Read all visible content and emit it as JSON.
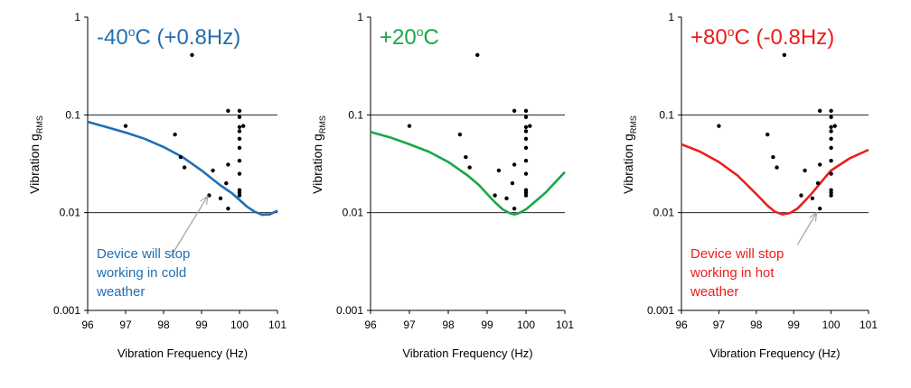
{
  "chart_data": [
    {
      "type": "scatter",
      "title": "-40",
      "title_sup": "o",
      "title_rest": "C (+0.8Hz)",
      "title_color": "#1f6fb4",
      "xlabel": "Vibration Frequency (Hz)",
      "ylabel": "Vibration g",
      "ylabel_sub": "RMS",
      "xlim": [
        96,
        101
      ],
      "ylim": [
        0.001,
        1
      ],
      "yscale": "log",
      "x_ticks": [
        "96",
        "97",
        "98",
        "99",
        "100",
        "101"
      ],
      "y_ticks": [
        "0.001",
        "0.01",
        "0.1",
        "1"
      ],
      "grid": "major horizontal",
      "points": [
        [
          97.0,
          0.077
        ],
        [
          98.3,
          0.063
        ],
        [
          98.45,
          0.037
        ],
        [
          98.55,
          0.029
        ],
        [
          98.75,
          0.41
        ],
        [
          99.2,
          0.015
        ],
        [
          99.3,
          0.027
        ],
        [
          99.5,
          0.014
        ],
        [
          99.65,
          0.02
        ],
        [
          99.7,
          0.011
        ],
        [
          99.7,
          0.031
        ],
        [
          99.7,
          0.11
        ],
        [
          100,
          0.11
        ],
        [
          100,
          0.095
        ],
        [
          100,
          0.075
        ],
        [
          100,
          0.068
        ],
        [
          100,
          0.057
        ],
        [
          100,
          0.046
        ],
        [
          100,
          0.034
        ],
        [
          100,
          0.025
        ],
        [
          100,
          0.017
        ],
        [
          100,
          0.016
        ],
        [
          100,
          0.015
        ],
        [
          100.1,
          0.077
        ]
      ],
      "curve": {
        "color": "#1f6fb4",
        "x": [
          96,
          96.5,
          97,
          97.5,
          98,
          98.5,
          99,
          99.5,
          99.8,
          100,
          100.2,
          100.4,
          100.6,
          100.8,
          101
        ],
        "y": [
          0.085,
          0.075,
          0.066,
          0.057,
          0.047,
          0.037,
          0.027,
          0.019,
          0.0158,
          0.0135,
          0.0115,
          0.0102,
          0.0095,
          0.0096,
          0.0105
        ]
      },
      "annotation": {
        "lines": [
          "Device will stop",
          "working in cold",
          "weather"
        ],
        "color": "#1f6fb4",
        "arrow_to": [
          99.15,
          0.0145
        ],
        "arrow_from": [
          98.2,
          0.0036
        ]
      }
    },
    {
      "type": "scatter",
      "title": "+20",
      "title_sup": "o",
      "title_rest": "C",
      "title_color": "#1aa64a",
      "xlabel": "Vibration Frequency (Hz)",
      "ylabel": "Vibration g",
      "ylabel_sub": "RMS",
      "xlim": [
        96,
        101
      ],
      "ylim": [
        0.001,
        1
      ],
      "yscale": "log",
      "x_ticks": [
        "96",
        "97",
        "98",
        "99",
        "100",
        "101"
      ],
      "y_ticks": [
        "0.001",
        "0.01",
        "0.1",
        "1"
      ],
      "grid": "major horizontal",
      "points": [
        [
          97.0,
          0.077
        ],
        [
          98.3,
          0.063
        ],
        [
          98.45,
          0.037
        ],
        [
          98.55,
          0.029
        ],
        [
          98.75,
          0.41
        ],
        [
          99.2,
          0.015
        ],
        [
          99.3,
          0.027
        ],
        [
          99.5,
          0.014
        ],
        [
          99.65,
          0.02
        ],
        [
          99.7,
          0.011
        ],
        [
          99.7,
          0.031
        ],
        [
          99.7,
          0.11
        ],
        [
          100,
          0.11
        ],
        [
          100,
          0.095
        ],
        [
          100,
          0.075
        ],
        [
          100,
          0.068
        ],
        [
          100,
          0.057
        ],
        [
          100,
          0.046
        ],
        [
          100,
          0.034
        ],
        [
          100,
          0.025
        ],
        [
          100,
          0.017
        ],
        [
          100,
          0.016
        ],
        [
          100,
          0.015
        ],
        [
          100.1,
          0.077
        ]
      ],
      "curve": {
        "color": "#1aa64a",
        "x": [
          96,
          96.5,
          97,
          97.5,
          98,
          98.5,
          98.8,
          99,
          99.2,
          99.4,
          99.6,
          99.7,
          99.8,
          100,
          100.2,
          100.5,
          101
        ],
        "y": [
          0.067,
          0.059,
          0.05,
          0.042,
          0.033,
          0.024,
          0.019,
          0.0155,
          0.0128,
          0.0108,
          0.0098,
          0.0096,
          0.0098,
          0.0108,
          0.0126,
          0.016,
          0.026
        ]
      }
    },
    {
      "type": "scatter",
      "title": "+80",
      "title_sup": "o",
      "title_rest": "C (-0.8Hz)",
      "title_color": "#ee1c1c",
      "xlabel": "Vibration Frequency (Hz)",
      "ylabel": "Vibration g",
      "ylabel_sub": "RMS",
      "xlim": [
        96,
        101
      ],
      "ylim": [
        0.001,
        1
      ],
      "yscale": "log",
      "x_ticks": [
        "96",
        "97",
        "98",
        "99",
        "100",
        "101"
      ],
      "y_ticks": [
        "0.001",
        "0.01",
        "0.1",
        "1"
      ],
      "grid": "major horizontal",
      "points": [
        [
          97.0,
          0.077
        ],
        [
          98.3,
          0.063
        ],
        [
          98.45,
          0.037
        ],
        [
          98.55,
          0.029
        ],
        [
          98.75,
          0.41
        ],
        [
          99.2,
          0.015
        ],
        [
          99.3,
          0.027
        ],
        [
          99.5,
          0.014
        ],
        [
          99.65,
          0.02
        ],
        [
          99.7,
          0.011
        ],
        [
          99.7,
          0.031
        ],
        [
          99.7,
          0.11
        ],
        [
          100,
          0.11
        ],
        [
          100,
          0.095
        ],
        [
          100,
          0.075
        ],
        [
          100,
          0.068
        ],
        [
          100,
          0.057
        ],
        [
          100,
          0.046
        ],
        [
          100,
          0.034
        ],
        [
          100,
          0.025
        ],
        [
          100,
          0.017
        ],
        [
          100,
          0.016
        ],
        [
          100,
          0.015
        ],
        [
          100.1,
          0.077
        ]
      ],
      "curve": {
        "color": "#ee1c1c",
        "x": [
          96,
          96.5,
          97,
          97.5,
          98,
          98.3,
          98.5,
          98.7,
          98.9,
          99.1,
          99.3,
          99.5,
          99.8,
          100,
          100.5,
          101
        ],
        "y": [
          0.05,
          0.042,
          0.033,
          0.024,
          0.0155,
          0.0118,
          0.0102,
          0.0096,
          0.0099,
          0.011,
          0.0132,
          0.016,
          0.022,
          0.027,
          0.036,
          0.044
        ]
      },
      "annotation": {
        "lines": [
          "Device will stop",
          "working in hot",
          "weather"
        ],
        "color": "#ee1c1c",
        "arrow_to": [
          99.6,
          0.0098
        ],
        "arrow_from": [
          99.1,
          0.0047
        ]
      }
    }
  ]
}
